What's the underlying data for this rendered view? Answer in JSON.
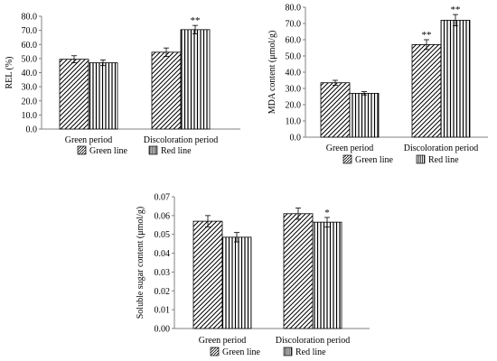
{
  "colors": {
    "axis": "#808080",
    "bar_stroke": "#000000",
    "background": "#ffffff"
  },
  "chart_data": [
    {
      "type": "bar",
      "ylabel": "REL (%)",
      "categories": [
        "Green period",
        "Discoloration period"
      ],
      "ylim": [
        0,
        80
      ],
      "yticks": [
        "0.0",
        "10.0",
        "20.0",
        "30.0",
        "40.0",
        "50.0",
        "60.0",
        "70.0",
        "80.0"
      ],
      "series": [
        {
          "name": "Green line",
          "pattern": "diagonal",
          "values": [
            49.5,
            54.5
          ],
          "errors": [
            2.5,
            3.0
          ]
        },
        {
          "name": "Red line",
          "pattern": "vertical",
          "values": [
            47.0,
            70.5
          ],
          "errors": [
            2.0,
            3.0
          ]
        }
      ],
      "annotations": [
        {
          "category": 1,
          "series": 1,
          "text": "**"
        }
      ],
      "legend": "bottom"
    },
    {
      "type": "bar",
      "ylabel": "MDA content (μmol/g)",
      "categories": [
        "Green period",
        "Discoloration period"
      ],
      "ylim": [
        0,
        80
      ],
      "yticks": [
        "0.0",
        "10.0",
        "20.0",
        "30.0",
        "40.0",
        "50.0",
        "60.0",
        "70.0",
        "80.0"
      ],
      "series": [
        {
          "name": "Green line",
          "pattern": "diagonal",
          "values": [
            33.5,
            57.0
          ],
          "errors": [
            1.5,
            3.0
          ]
        },
        {
          "name": "Red line",
          "pattern": "vertical",
          "values": [
            27.0,
            72.0
          ],
          "errors": [
            1.0,
            3.5
          ]
        }
      ],
      "annotations": [
        {
          "category": 1,
          "series": 0,
          "text": "**"
        },
        {
          "category": 1,
          "series": 1,
          "text": "**"
        }
      ],
      "legend": "bottom"
    },
    {
      "type": "bar",
      "ylabel": "Soluble sugar content (μmol/g)",
      "categories": [
        "Green period",
        "Discoloration period"
      ],
      "ylim": [
        0,
        0.07
      ],
      "yticks": [
        "0.00",
        "0.01",
        "0.02",
        "0.03",
        "0.04",
        "0.05",
        "0.06",
        "0.07"
      ],
      "series": [
        {
          "name": "Green line",
          "pattern": "diagonal",
          "values": [
            0.057,
            0.061
          ],
          "errors": [
            0.003,
            0.003
          ]
        },
        {
          "name": "Red line",
          "pattern": "vertical",
          "values": [
            0.0485,
            0.0565
          ],
          "errors": [
            0.0025,
            0.0025
          ]
        }
      ],
      "annotations": [
        {
          "category": 1,
          "series": 1,
          "text": "*"
        }
      ],
      "legend": "bottom"
    }
  ]
}
